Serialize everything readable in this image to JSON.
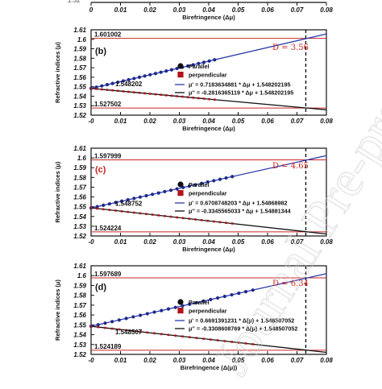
{
  "top_strip": {
    "ticks": [
      "0",
      "0.01",
      "0.02",
      "0.03",
      "0.04",
      "0.05",
      "0.06",
      "0.07",
      "0.08"
    ],
    "clipped_label": "1.52",
    "xlabel": "Birefringence (Δμ)"
  },
  "watermark": "Journal Pre-proofs",
  "colors": {
    "parallel": "#1f2a8c",
    "perpendicular": "#b0141a",
    "upper_fit": "#2b3aa8",
    "lower_fit": "#111111",
    "hline": "#c8262a",
    "dlabel": "#d0201a"
  },
  "chart_data": [
    {
      "type": "scatter",
      "panel": "(b)",
      "xlabel": "Birefringence (Δμ)",
      "ylabel": "Refractive indices (μ)",
      "xlim": [
        0,
        0.08
      ],
      "ylim": [
        1.52,
        1.61
      ],
      "x_ticks": [
        "-0",
        "0.01",
        "0.02",
        "0.03",
        "0.04",
        "0.05",
        "0.06",
        "0.07",
        "0.08"
      ],
      "y_ticks": [
        "1.52",
        "1.53",
        "1.54",
        "1.55",
        "1.56",
        "1.57",
        "1.58",
        "1.59",
        "1.6",
        "1.61"
      ],
      "legend": [
        "Parallel",
        "perpendicular"
      ],
      "equations": [
        "μ' = 0.7183634881 * Δμ + 1.548202195",
        "μ'' = -0.2816365119 * Δμ + 1.548202195"
      ],
      "upper_fit": {
        "slope": 0.7183634881,
        "intercept": 1.548202195
      },
      "lower_fit": {
        "slope": -0.2816365119,
        "intercept": 1.548202195
      },
      "data_xmax": 0.042,
      "hlines": [
        1.601002,
        1.527502
      ],
      "hline_labels": [
        "1.601002",
        "1.527502"
      ],
      "intercept_label": "1.548202",
      "vline_x": 0.073,
      "d_label": "D = 3.56",
      "intercept_label_below": false
    },
    {
      "type": "scatter",
      "panel": "(c)",
      "xlabel": "Birefringence (Δμ)",
      "ylabel": "Refractive indices (μ)",
      "xlim": [
        0,
        0.08
      ],
      "ylim": [
        1.52,
        1.61
      ],
      "x_ticks": [
        "-0",
        "0.01",
        "0.02",
        "0.03",
        "0.04",
        "0.05",
        "0.06",
        "0.07",
        "0.08"
      ],
      "y_ticks": [
        "1.52",
        "1.53",
        "1.54",
        "1.55",
        "1.56",
        "1.57",
        "1.58",
        "1.59",
        "1.6",
        "1.61"
      ],
      "legend": [
        "Parallel",
        "perpendicular"
      ],
      "equations": [
        "μ' = 0.6708748203 * Δμ + 1.54868982",
        "μ'' = -0.3345565033 * Δμ + 1.54881344"
      ],
      "upper_fit": {
        "slope": 0.6708748203,
        "intercept": 1.54868982
      },
      "lower_fit": {
        "slope": -0.3345565033,
        "intercept": 1.54881344
      },
      "data_xmax": 0.048,
      "hlines": [
        1.597999,
        1.524224
      ],
      "hline_labels": [
        "1.597999",
        "1.524224"
      ],
      "intercept_label": "1.548752",
      "vline_x": 0.073,
      "d_label": "D = 4.65",
      "intercept_label_below": false
    },
    {
      "type": "scatter",
      "panel": "(d)",
      "xlabel": "Birefringence (Δ(μ))",
      "ylabel": "Refractive indices (μ)",
      "xlim": [
        0,
        0.08
      ],
      "ylim": [
        1.52,
        1.61
      ],
      "x_ticks": [
        "-0",
        "0.01",
        "0.02",
        "0.03",
        "0.04",
        "0.05",
        "0.06",
        "0.07",
        "0.08"
      ],
      "y_ticks": [
        "1.52",
        "1.53",
        "1.54",
        "1.55",
        "1.56",
        "1.57",
        "1.58",
        "1.59",
        "1.6",
        "1.61"
      ],
      "legend": [
        "Parallel",
        "perpendicular"
      ],
      "equations": [
        "μ' = 0.6691391231 * Δ(μ) + 1.548507052",
        "μ'' = -0.3308608769 * Δ(μ) + 1.548507052"
      ],
      "upper_fit": {
        "slope": 0.6691391231,
        "intercept": 1.548507052
      },
      "lower_fit": {
        "slope": -0.3308608769,
        "intercept": 1.548507052
      },
      "data_xmax": 0.055,
      "hlines": [
        1.597689,
        1.524189
      ],
      "hline_labels": [
        "1.597689",
        "1.524189"
      ],
      "intercept_label": "1.548507",
      "vline_x": 0.073,
      "d_label": "D = 6.34",
      "intercept_label_below": true
    }
  ]
}
